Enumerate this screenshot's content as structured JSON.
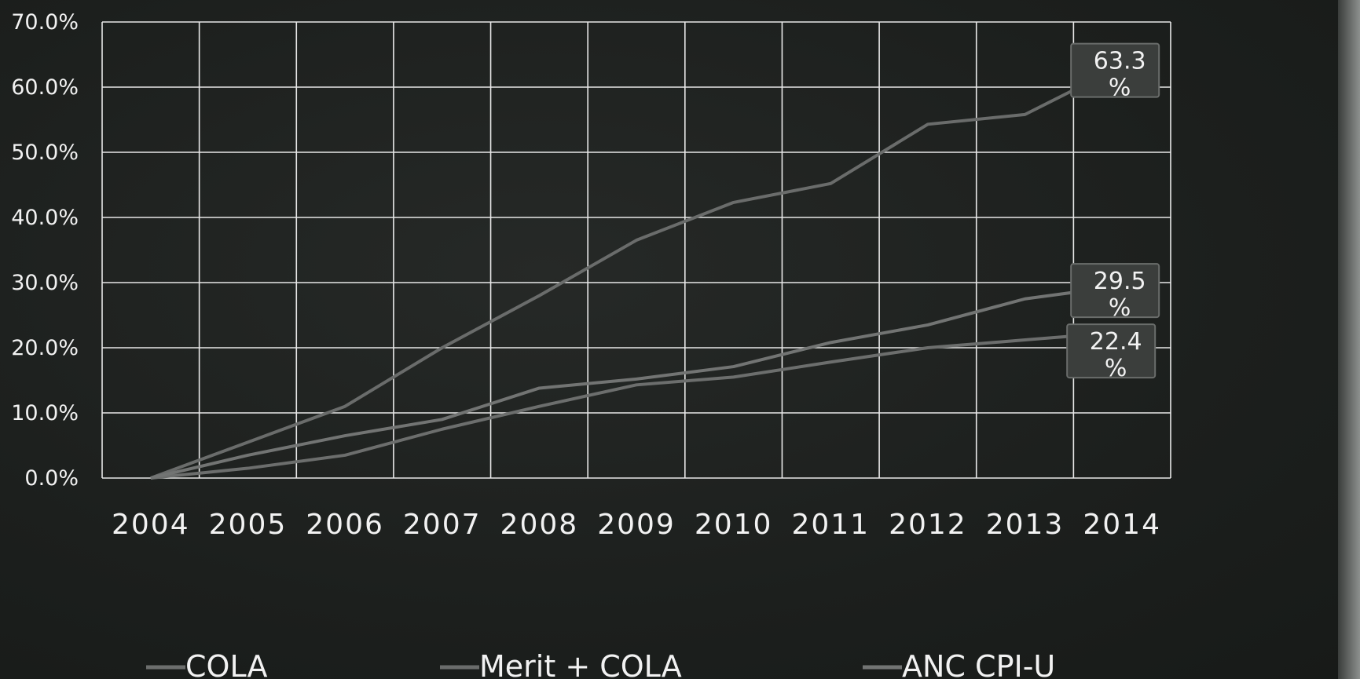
{
  "chart_data": {
    "type": "line",
    "x": [
      "2004",
      "2005",
      "2006",
      "2007",
      "2008",
      "2009",
      "2010",
      "2011",
      "2012",
      "2013",
      "2014"
    ],
    "ylim": [
      0,
      70
    ],
    "yticks": [
      "0.0%",
      "10.0%",
      "20.0%",
      "30.0%",
      "40.0%",
      "50.0%",
      "60.0%",
      "70.0%"
    ],
    "grid": true,
    "legend_position": "bottom",
    "series": [
      {
        "name": "COLA",
        "values": [
          0.0,
          1.5,
          3.5,
          7.5,
          11.0,
          14.3,
          15.5,
          17.8,
          20.0,
          21.2,
          22.4
        ],
        "end_label": "22.4\n%",
        "color": "#6c6e6d"
      },
      {
        "name": "Merit + COLA",
        "values": [
          0.0,
          5.5,
          11.0,
          20.0,
          28.0,
          36.5,
          42.3,
          45.2,
          54.3,
          55.8,
          63.3
        ],
        "end_label": "63.3\n%",
        "color": "#6a6c6b"
      },
      {
        "name": "ANC CPI-U",
        "values": [
          0.0,
          3.5,
          6.5,
          9.0,
          13.8,
          15.2,
          17.1,
          20.8,
          23.5,
          27.5,
          29.5
        ],
        "end_label": "29.5\n%",
        "color": "#727473"
      }
    ]
  },
  "colors": {
    "background": "#1d201e",
    "grid": "#e8e8e8",
    "text": "#f2f2f2",
    "label_box": "#3b3e3c"
  }
}
